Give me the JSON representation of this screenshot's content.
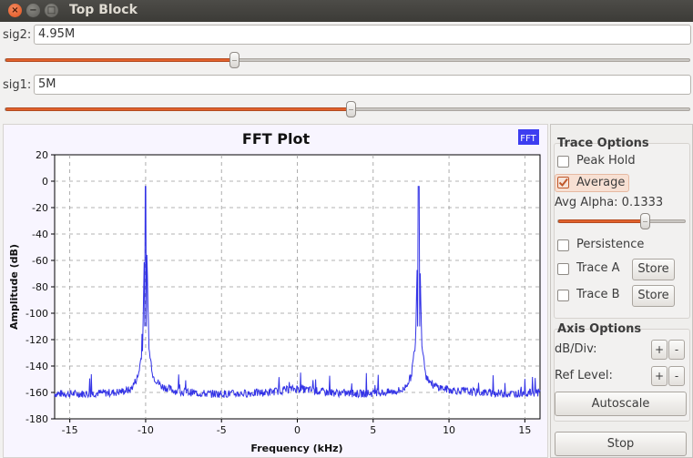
{
  "window": {
    "title": "Top Block",
    "close_glyph": "×",
    "min_glyph": "−",
    "max_glyph": "□"
  },
  "controls": {
    "sig2": {
      "label": "sig2:",
      "value": "4.95M",
      "slider_fraction": 0.335
    },
    "sig1": {
      "label": "sig1:",
      "value": "5M",
      "slider_fraction": 0.505
    }
  },
  "plot": {
    "title": "FFT Plot",
    "badge": "FFT",
    "xlabel": "Frequency (kHz)",
    "ylabel": "Amplitude (dB)",
    "trace_color": "#3333e6"
  },
  "chart_data": {
    "type": "line",
    "title": "FFT Plot",
    "xlabel": "Frequency (kHz)",
    "ylabel": "Amplitude (dB)",
    "xlim": [
      -16,
      16
    ],
    "ylim": [
      -180,
      20
    ],
    "xticks": [
      -15,
      -10,
      -5,
      0,
      5,
      10,
      15
    ],
    "yticks": [
      20,
      0,
      -20,
      -40,
      -60,
      -80,
      -100,
      -120,
      -140,
      -160,
      -180
    ],
    "grid": true,
    "noise_floor_db": -161,
    "peaks": [
      {
        "x": -10,
        "y": -4
      },
      {
        "x": 8,
        "y": -4
      }
    ],
    "x": [
      -16,
      -14,
      -12,
      -11,
      -10.5,
      -10.2,
      -10,
      -9.8,
      -9.5,
      -9,
      -8,
      -6,
      -4,
      -2,
      0,
      2,
      4,
      6,
      7,
      7.5,
      7.8,
      8,
      8.2,
      8.5,
      9,
      10,
      12,
      14,
      16
    ],
    "y": [
      -161,
      -161,
      -160,
      -158,
      -148,
      -126,
      -4,
      -126,
      -148,
      -155,
      -159,
      -161,
      -161,
      -160,
      -157,
      -160,
      -161,
      -160,
      -158,
      -148,
      -122,
      -4,
      -122,
      -148,
      -155,
      -158,
      -160,
      -161,
      -160
    ]
  },
  "trace_options": {
    "header": "Trace Options",
    "peak_hold": {
      "label": "Peak Hold",
      "checked": false
    },
    "average": {
      "label": "Average",
      "checked": true
    },
    "avg_alpha_label": "Avg Alpha: 0.1333",
    "avg_alpha_fraction": 0.68,
    "persistence": {
      "label": "Persistence",
      "checked": false
    },
    "trace_a": {
      "label": "Trace A",
      "checked": false,
      "store": "Store"
    },
    "trace_b": {
      "label": "Trace B",
      "checked": false,
      "store": "Store"
    }
  },
  "axis_options": {
    "header": "Axis Options",
    "db_div": {
      "label": "dB/Div:",
      "plus": "+",
      "minus": "-"
    },
    "ref_level": {
      "label": "Ref Level:",
      "plus": "+",
      "minus": "-"
    },
    "autoscale": "Autoscale"
  },
  "stop_label": "Stop",
  "accent": "#e1612c"
}
